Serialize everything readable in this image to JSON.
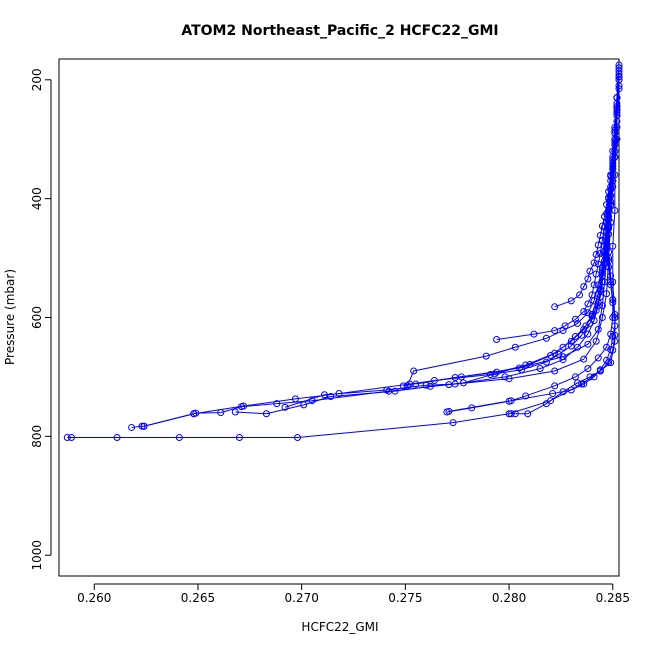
{
  "chart_data": {
    "type": "line",
    "title": "ATOM2 Northeast_Pacific_2 HCFC22_GMI",
    "xlabel": "HCFC22_GMI",
    "ylabel": "Pressure (mbar)",
    "x_ticks": [
      "0.260",
      "0.265",
      "0.270",
      "0.275",
      "0.280",
      "0.285"
    ],
    "y_ticks": [
      "200",
      "400",
      "600",
      "800",
      "1000"
    ],
    "xlim": [
      0.2583,
      0.2853
    ],
    "ylim": [
      1035,
      165
    ],
    "y_reversed": true,
    "grid": false,
    "colors": {
      "series": "#0000ff",
      "axis": "#000000",
      "background": "#ffffff"
    },
    "series": [
      {
        "values": [
          [
            0.2587,
            802
          ],
          [
            0.2589,
            802
          ],
          [
            0.2611,
            802
          ],
          [
            0.2641,
            802
          ],
          [
            0.267,
            802
          ],
          [
            0.2698,
            802
          ],
          [
            0.2773,
            777
          ],
          [
            0.28,
            762
          ],
          [
            0.282,
            740
          ],
          [
            0.2835,
            712
          ],
          [
            0.2844,
            690
          ],
          [
            0.2849,
            676
          ],
          [
            0.2851,
            640
          ],
          [
            0.2851,
            600
          ],
          [
            0.285,
            540
          ],
          [
            0.285,
            480
          ],
          [
            0.2851,
            420
          ],
          [
            0.2851,
            360
          ],
          [
            0.2852,
            300
          ],
          [
            0.2852,
            240
          ],
          [
            0.2853,
            180
          ]
        ]
      },
      {
        "values": [
          [
            0.2618,
            785
          ],
          [
            0.2623,
            783
          ],
          [
            0.2624,
            783
          ],
          [
            0.2648,
            762
          ],
          [
            0.2649,
            761
          ],
          [
            0.2661,
            760
          ],
          [
            0.2671,
            750
          ],
          [
            0.2688,
            745
          ],
          [
            0.2705,
            740
          ],
          [
            0.2742,
            724
          ],
          [
            0.2771,
            713
          ],
          [
            0.28,
            703
          ],
          [
            0.2822,
            690
          ],
          [
            0.2836,
            670
          ],
          [
            0.2842,
            640
          ],
          [
            0.2845,
            600
          ],
          [
            0.2847,
            560
          ],
          [
            0.2848,
            500
          ],
          [
            0.2849,
            440
          ],
          [
            0.285,
            380
          ],
          [
            0.2851,
            320
          ],
          [
            0.2852,
            260
          ],
          [
            0.2853,
            195
          ]
        ]
      },
      {
        "values": [
          [
            0.2624,
            783
          ],
          [
            0.2648,
            762
          ],
          [
            0.2672,
            749
          ],
          [
            0.2697,
            737
          ],
          [
            0.2718,
            728
          ],
          [
            0.2752,
            712
          ],
          [
            0.2777,
            700
          ],
          [
            0.2805,
            685
          ],
          [
            0.2826,
            666
          ],
          [
            0.2838,
            645
          ],
          [
            0.2843,
            620
          ],
          [
            0.2845,
            580
          ],
          [
            0.2846,
            540
          ],
          [
            0.2847,
            500
          ],
          [
            0.2848,
            460
          ],
          [
            0.2849,
            410
          ],
          [
            0.285,
            350
          ],
          [
            0.2851,
            290
          ],
          [
            0.2852,
            230
          ],
          [
            0.2853,
            175
          ]
        ]
      },
      {
        "values": [
          [
            0.2668,
            759
          ],
          [
            0.2683,
            762
          ],
          [
            0.2701,
            747
          ],
          [
            0.2714,
            733
          ],
          [
            0.2745,
            724
          ],
          [
            0.2762,
            716
          ],
          [
            0.2778,
            710
          ],
          [
            0.2793,
            695
          ],
          [
            0.2808,
            680
          ],
          [
            0.2822,
            660
          ],
          [
            0.283,
            640
          ],
          [
            0.2836,
            620
          ],
          [
            0.284,
            595
          ],
          [
            0.2843,
            560
          ],
          [
            0.2845,
            520
          ],
          [
            0.2846,
            480
          ],
          [
            0.2847,
            440
          ],
          [
            0.2848,
            400
          ],
          [
            0.2849,
            360
          ],
          [
            0.285,
            320
          ],
          [
            0.2851,
            280
          ],
          [
            0.2852,
            230
          ],
          [
            0.2853,
            185
          ]
        ]
      },
      {
        "values": [
          [
            0.2692,
            751
          ],
          [
            0.2711,
            730
          ],
          [
            0.2741,
            722
          ],
          [
            0.276,
            714
          ],
          [
            0.2774,
            712
          ],
          [
            0.2798,
            700
          ],
          [
            0.2815,
            686
          ],
          [
            0.2826,
            671
          ],
          [
            0.2833,
            650
          ],
          [
            0.2838,
            628
          ],
          [
            0.2841,
            605
          ],
          [
            0.2843,
            580
          ],
          [
            0.2844,
            555
          ],
          [
            0.2845,
            525
          ],
          [
            0.2846,
            495
          ],
          [
            0.2847,
            465
          ],
          [
            0.2848,
            430
          ],
          [
            0.2849,
            395
          ],
          [
            0.285,
            345
          ],
          [
            0.2851,
            300
          ],
          [
            0.2852,
            250
          ],
          [
            0.2853,
            190
          ]
        ]
      },
      {
        "values": [
          [
            0.2751,
            715
          ],
          [
            0.2754,
            690
          ],
          [
            0.2789,
            665
          ],
          [
            0.2803,
            650
          ],
          [
            0.2818,
            635
          ],
          [
            0.2826,
            622
          ],
          [
            0.2833,
            610
          ],
          [
            0.2838,
            592
          ],
          [
            0.2841,
            572
          ],
          [
            0.2843,
            545
          ],
          [
            0.2845,
            515
          ],
          [
            0.2846,
            490
          ],
          [
            0.2847,
            455
          ],
          [
            0.2848,
            420
          ],
          [
            0.2849,
            380
          ],
          [
            0.285,
            335
          ],
          [
            0.2851,
            285
          ],
          [
            0.2852,
            245
          ],
          [
            0.2853,
            200
          ]
        ]
      },
      {
        "values": [
          [
            0.2749,
            715
          ],
          [
            0.2764,
            706
          ],
          [
            0.2791,
            696
          ],
          [
            0.2806,
            688
          ],
          [
            0.2818,
            675
          ],
          [
            0.2824,
            662
          ],
          [
            0.283,
            648
          ],
          [
            0.2835,
            630
          ],
          [
            0.2839,
            610
          ],
          [
            0.2842,
            588
          ],
          [
            0.2844,
            565
          ],
          [
            0.2845,
            540
          ],
          [
            0.2846,
            510
          ],
          [
            0.2847,
            480
          ],
          [
            0.2848,
            447
          ],
          [
            0.2849,
            410
          ],
          [
            0.285,
            370
          ],
          [
            0.2851,
            330
          ],
          [
            0.2852,
            270
          ],
          [
            0.2853,
            210
          ]
        ]
      },
      {
        "values": [
          [
            0.2755,
            712
          ],
          [
            0.2774,
            701
          ],
          [
            0.2794,
            692
          ],
          [
            0.281,
            679
          ],
          [
            0.282,
            664
          ],
          [
            0.2826,
            650
          ],
          [
            0.2832,
            632
          ],
          [
            0.2837,
            614
          ],
          [
            0.284,
            598
          ],
          [
            0.2843,
            575
          ],
          [
            0.2844,
            552
          ],
          [
            0.2845,
            530
          ],
          [
            0.2846,
            505
          ],
          [
            0.2847,
            475
          ],
          [
            0.2848,
            445
          ],
          [
            0.2849,
            405
          ],
          [
            0.285,
            360
          ],
          [
            0.2851,
            310
          ],
          [
            0.2852,
            260
          ],
          [
            0.2853,
            215
          ]
        ]
      },
      {
        "values": [
          [
            0.277,
            759
          ],
          [
            0.2782,
            752
          ],
          [
            0.28,
            741
          ],
          [
            0.2808,
            732
          ],
          [
            0.2822,
            715
          ],
          [
            0.2832,
            700
          ],
          [
            0.2838,
            686
          ],
          [
            0.2843,
            668
          ],
          [
            0.2847,
            650
          ],
          [
            0.2849,
            628
          ],
          [
            0.285,
            600
          ],
          [
            0.285,
            570
          ],
          [
            0.2849,
            530
          ],
          [
            0.2848,
            490
          ],
          [
            0.2848,
            450
          ],
          [
            0.2849,
            410
          ],
          [
            0.285,
            370
          ],
          [
            0.2851,
            330
          ],
          [
            0.2852,
            280
          ],
          [
            0.2852,
            230
          ],
          [
            0.2853,
            180
          ]
        ]
      },
      {
        "values": [
          [
            0.2771,
            758
          ],
          [
            0.2801,
            740
          ],
          [
            0.2821,
            728
          ],
          [
            0.283,
            722
          ],
          [
            0.2836,
            712
          ],
          [
            0.2841,
            700
          ],
          [
            0.2844,
            688
          ],
          [
            0.2847,
            672
          ],
          [
            0.2849,
            654
          ],
          [
            0.285,
            632
          ],
          [
            0.2851,
            614
          ],
          [
            0.2851,
            595
          ],
          [
            0.285,
            570
          ],
          [
            0.2849,
            540
          ],
          [
            0.2848,
            505
          ],
          [
            0.2847,
            470
          ],
          [
            0.2848,
            435
          ],
          [
            0.2849,
            395
          ],
          [
            0.285,
            350
          ],
          [
            0.2851,
            305
          ],
          [
            0.2852,
            255
          ],
          [
            0.2853,
            200
          ]
        ]
      },
      {
        "values": [
          [
            0.2794,
            637
          ],
          [
            0.2812,
            628
          ],
          [
            0.2822,
            622
          ],
          [
            0.2827,
            614
          ],
          [
            0.2832,
            603
          ],
          [
            0.2836,
            590
          ],
          [
            0.2838,
            577
          ],
          [
            0.284,
            562
          ],
          [
            0.2841,
            545
          ],
          [
            0.2842,
            527
          ],
          [
            0.2843,
            510
          ],
          [
            0.2844,
            492
          ],
          [
            0.2845,
            470
          ],
          [
            0.2846,
            448
          ],
          [
            0.2847,
            425
          ],
          [
            0.2848,
            398
          ],
          [
            0.2849,
            370
          ],
          [
            0.285,
            340
          ],
          [
            0.2851,
            300
          ],
          [
            0.2852,
            250
          ],
          [
            0.2853,
            195
          ]
        ]
      },
      {
        "values": [
          [
            0.2822,
            582
          ],
          [
            0.283,
            572
          ],
          [
            0.2834,
            562
          ],
          [
            0.2836,
            548
          ],
          [
            0.2838,
            535
          ],
          [
            0.2839,
            522
          ],
          [
            0.2841,
            508
          ],
          [
            0.2842,
            494
          ],
          [
            0.2843,
            478
          ],
          [
            0.2844,
            462
          ],
          [
            0.2845,
            446
          ],
          [
            0.2846,
            430
          ],
          [
            0.2847,
            410
          ],
          [
            0.2848,
            388
          ],
          [
            0.2849,
            362
          ],
          [
            0.285,
            330
          ],
          [
            0.2851,
            290
          ],
          [
            0.2852,
            245
          ],
          [
            0.2853,
            195
          ]
        ]
      },
      {
        "values": [
          [
            0.2801,
            762
          ],
          [
            0.2803,
            762
          ],
          [
            0.2809,
            762
          ],
          [
            0.2818,
            745
          ],
          [
            0.2826,
            725
          ],
          [
            0.2833,
            710
          ],
          [
            0.2839,
            700
          ],
          [
            0.2844,
            690
          ],
          [
            0.2848,
            676
          ],
          [
            0.285,
            655
          ],
          [
            0.2851,
            630
          ],
          [
            0.2851,
            600
          ],
          [
            0.285,
            575
          ],
          [
            0.2849,
            545
          ],
          [
            0.2848,
            515
          ],
          [
            0.2847,
            485
          ],
          [
            0.2847,
            455
          ],
          [
            0.2848,
            420
          ],
          [
            0.2849,
            385
          ],
          [
            0.285,
            345
          ],
          [
            0.2851,
            300
          ],
          [
            0.2852,
            250
          ],
          [
            0.2853,
            195
          ]
        ]
      }
    ]
  }
}
